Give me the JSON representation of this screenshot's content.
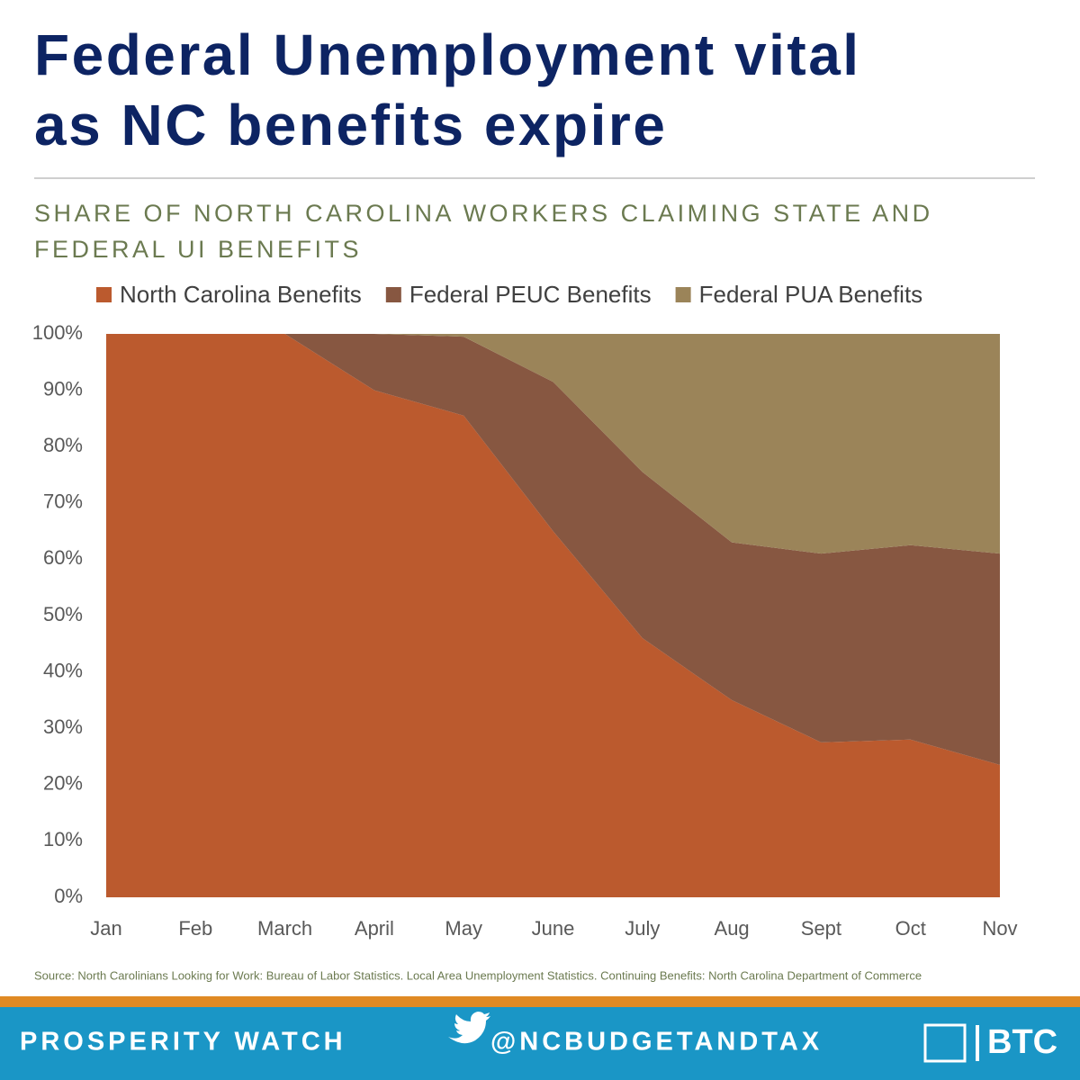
{
  "chart_data": {
    "type": "stacked-area",
    "title": [
      "Federal Unemployment vital",
      "as NC benefits expire"
    ],
    "subtitle": [
      "SHARE OF NORTH CAROLINA WORKERS CLAIMING STATE AND",
      "FEDERAL UI BENEFITS"
    ],
    "categories": [
      "Jan",
      "Feb",
      "March",
      "April",
      "May",
      "June",
      "July",
      "Aug",
      "Sept",
      "Oct",
      "Nov"
    ],
    "series": [
      {
        "name": "North Carolina Benefits",
        "color": "#bb5a2e",
        "values": [
          100,
          100,
          100,
          90,
          85.5,
          65,
          46,
          35,
          27.5,
          28,
          23.5
        ]
      },
      {
        "name": "Federal PEUC Benefits",
        "color": "#875741",
        "values": [
          0,
          0,
          0,
          10,
          14,
          26.5,
          29.5,
          28,
          33.5,
          34.5,
          37.5
        ]
      },
      {
        "name": "Federal PUA Benefits",
        "color": "#9b8459",
        "values": [
          0,
          0,
          0,
          0,
          0.5,
          8.5,
          24.5,
          37,
          39,
          37.5,
          39
        ]
      }
    ],
    "ylim": [
      0,
      100
    ],
    "yticks": [
      {
        "value": 0,
        "label": "0%"
      },
      {
        "value": 10,
        "label": "10%"
      },
      {
        "value": 20,
        "label": "20%"
      },
      {
        "value": 30,
        "label": "30%"
      },
      {
        "value": 40,
        "label": "40%"
      },
      {
        "value": 50,
        "label": "50%"
      },
      {
        "value": 60,
        "label": "60%"
      },
      {
        "value": 70,
        "label": "70%"
      },
      {
        "value": 80,
        "label": "80%"
      },
      {
        "value": 90,
        "label": "90%"
      },
      {
        "value": 100,
        "label": "100%"
      }
    ],
    "grid": false,
    "legend": "top",
    "source": "Source: North Carolinians Looking for Work: Bureau of Labor Statistics. Local Area Unemployment Statistics. Continuing Benefits: North Carolina Department of Commerce"
  },
  "footer": {
    "left": "PROSPERITY WATCH",
    "handle": "@NCBUDGETANDTAX",
    "logo": "BTC"
  }
}
